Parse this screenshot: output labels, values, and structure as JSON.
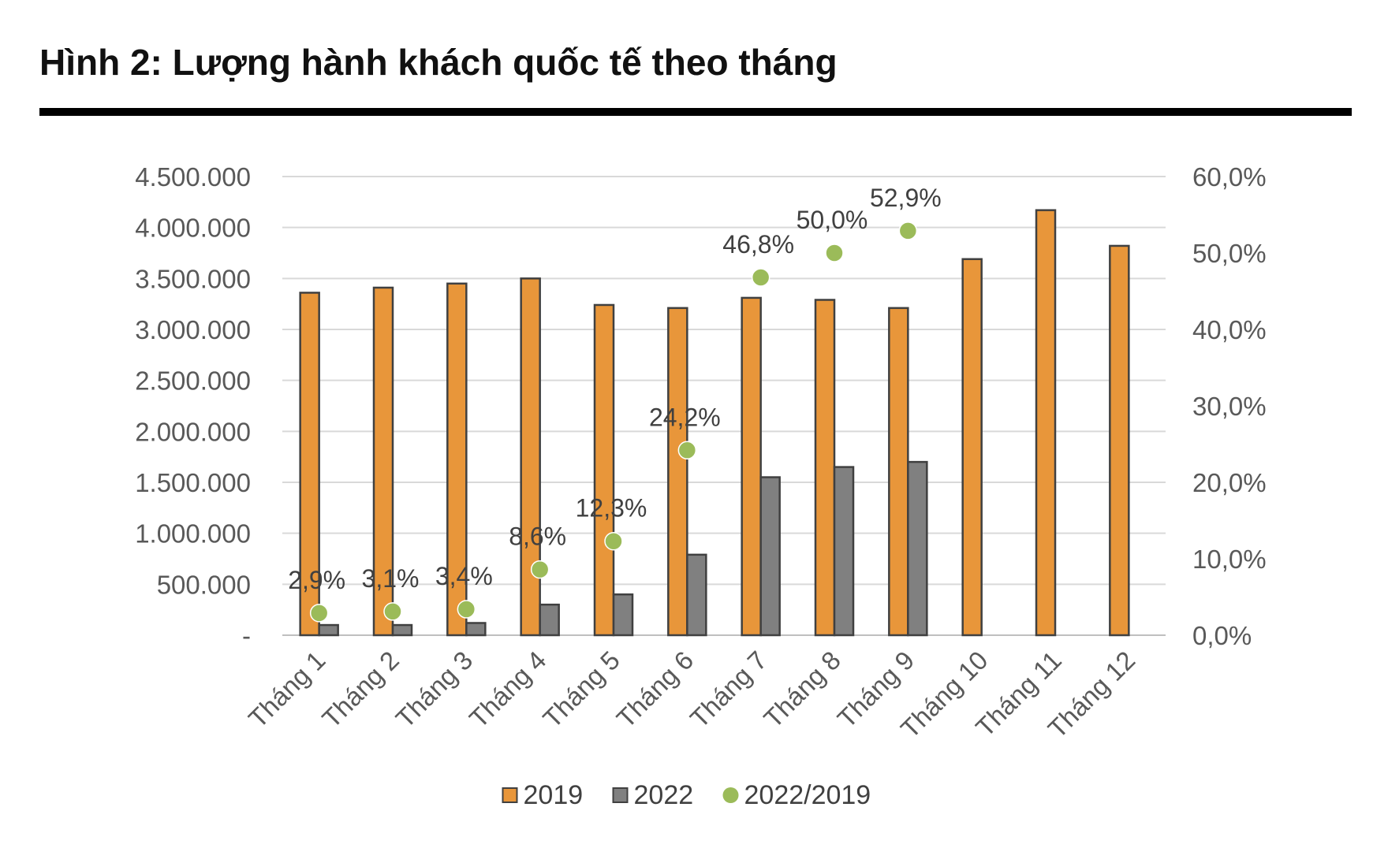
{
  "figure": {
    "title": "Hình 2: Lượng hành khách quốc tế theo tháng"
  },
  "chart_data": {
    "type": "bar",
    "categories": [
      "Tháng 1",
      "Tháng 2",
      "Tháng 3",
      "Tháng 4",
      "Tháng 5",
      "Tháng 6",
      "Tháng 7",
      "Tháng 8",
      "Tháng 9",
      "Tháng 10",
      "Tháng 11",
      "Tháng 12"
    ],
    "series": [
      {
        "name": "2019",
        "kind": "bar",
        "axis": "left",
        "color": "#E8963A",
        "values": [
          3360000,
          3410000,
          3450000,
          3500000,
          3240000,
          3210000,
          3310000,
          3290000,
          3210000,
          3690000,
          4170000,
          3820000
        ]
      },
      {
        "name": "2022",
        "kind": "bar",
        "axis": "left",
        "color": "#808080",
        "values": [
          100000,
          100000,
          120000,
          300000,
          400000,
          790000,
          1550000,
          1650000,
          1700000,
          null,
          null,
          null
        ]
      },
      {
        "name": "2022/2019",
        "kind": "scatter",
        "axis": "right",
        "color": "#9BBB59",
        "values": [
          2.9,
          3.1,
          3.4,
          8.6,
          12.3,
          24.2,
          46.8,
          50.0,
          52.9,
          null,
          null,
          null
        ],
        "labels": [
          "2,9%",
          "3,1%",
          "3,4%",
          "8,6%",
          "12,3%",
          "24,2%",
          "46,8%",
          "50,0%",
          "52,9%",
          null,
          null,
          null
        ]
      }
    ],
    "y_left": {
      "min": 0,
      "max": 4500000,
      "ticks": [
        0,
        500000,
        1000000,
        1500000,
        2000000,
        2500000,
        3000000,
        3500000,
        4000000,
        4500000
      ],
      "tick_labels": [
        "-",
        "500.000",
        "1.000.000",
        "1.500.000",
        "2.000.000",
        "2.500.000",
        "3.000.000",
        "3.500.000",
        "4.000.000",
        "4.500.000"
      ]
    },
    "y_right": {
      "min": 0,
      "max": 60,
      "ticks": [
        0,
        10,
        20,
        30,
        40,
        50,
        60
      ],
      "tick_labels": [
        "0,0%",
        "10,0%",
        "20,0%",
        "30,0%",
        "40,0%",
        "50,0%",
        "60,0%"
      ]
    },
    "grid": true,
    "legend": {
      "position": "bottom",
      "entries": [
        "2019",
        "2022",
        "2022/2019"
      ]
    }
  }
}
